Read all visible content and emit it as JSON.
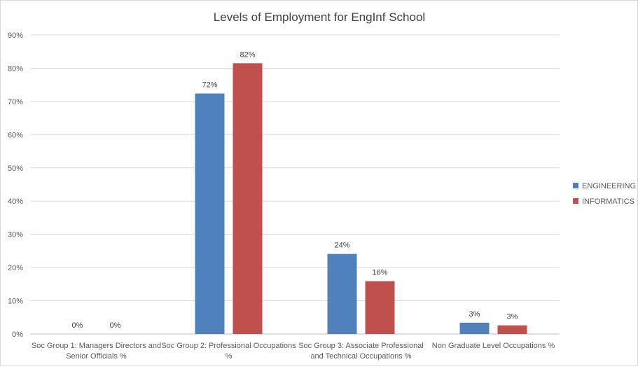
{
  "chart_data": {
    "type": "bar",
    "title": "Levels of Employment for EngInf School",
    "xlabel": "",
    "ylabel": "",
    "ylim": [
      0,
      90
    ],
    "yticks": [
      0,
      10,
      20,
      30,
      40,
      50,
      60,
      70,
      80,
      90
    ],
    "ytick_labels": [
      "0%",
      "10%",
      "20%",
      "30%",
      "40%",
      "50%",
      "60%",
      "70%",
      "80%",
      "90%"
    ],
    "grid": true,
    "legend": "right",
    "categories": [
      [
        "Soc Group 1: Managers Directors and",
        "Senior Officials %"
      ],
      [
        "Soc Group 2: Professional Occupations",
        "%"
      ],
      [
        "Soc Group 3: Associate Professional",
        "and Technical Occupations %"
      ],
      [
        "Non Graduate Level Occupations %"
      ]
    ],
    "series": [
      {
        "name": "ENGINEERING",
        "color": "#4f81bd",
        "values": [
          0,
          72.4,
          24.1,
          3.4
        ],
        "labels": [
          "0%",
          "72%",
          "24%",
          "3%"
        ]
      },
      {
        "name": "INFORMATICS",
        "color": "#c0504d",
        "values": [
          0,
          81.5,
          15.9,
          2.6
        ],
        "labels": [
          "0%",
          "82%",
          "16%",
          "3%"
        ]
      }
    ]
  }
}
